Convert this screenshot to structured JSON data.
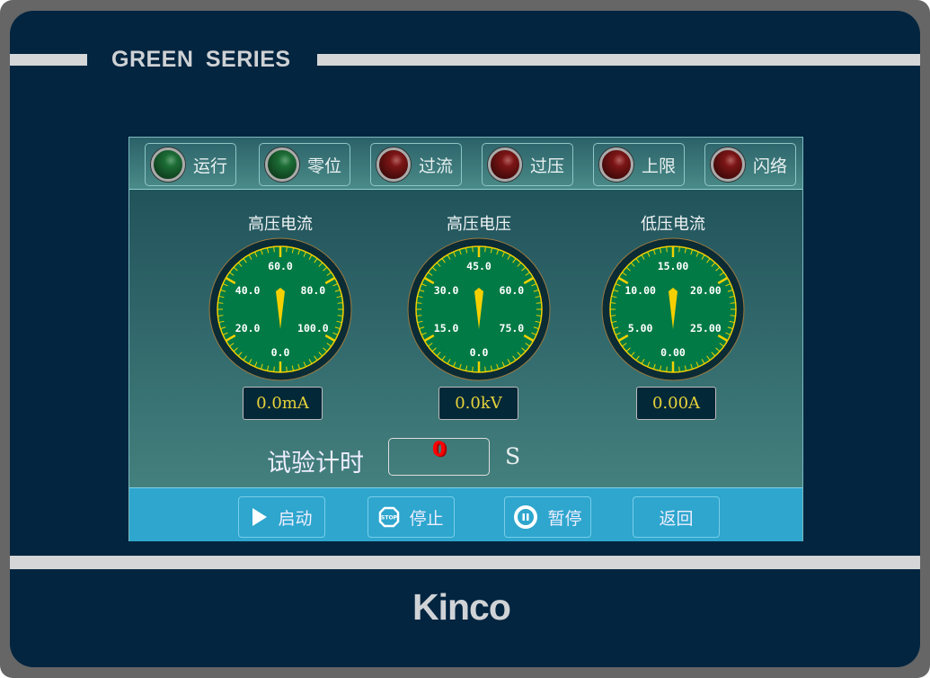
{
  "brand": {
    "series": "GREEN SERIES",
    "logo": "Kinco"
  },
  "lamps": [
    {
      "label": "运行",
      "state": "green"
    },
    {
      "label": "零位",
      "state": "green"
    },
    {
      "label": "过流",
      "state": "red"
    },
    {
      "label": "过压",
      "state": "red"
    },
    {
      "label": "上限",
      "state": "red"
    },
    {
      "label": "闪络",
      "state": "red"
    }
  ],
  "gauges": [
    {
      "title": "高压电流",
      "labels": [
        "0.0",
        "20.0",
        "40.0",
        "60.0",
        "80.0",
        "100.0"
      ],
      "value": 0,
      "max": 120,
      "readout": "0.0mA"
    },
    {
      "title": "高压电压",
      "labels": [
        "0.0",
        "15.0",
        "30.0",
        "45.0",
        "60.0",
        "75.0"
      ],
      "value": 0,
      "max": 90,
      "readout": "0.0kV"
    },
    {
      "title": "低压电流",
      "labels": [
        "0.00",
        "5.00",
        "10.00",
        "15.00",
        "20.00",
        "25.00"
      ],
      "value": 0,
      "max": 30,
      "readout": "0.00A"
    }
  ],
  "timer": {
    "label": "试验计时",
    "value": "0",
    "unit": "S"
  },
  "buttons": [
    {
      "label": "启动",
      "icon": "play-icon"
    },
    {
      "label": "停止",
      "icon": "stop-sign-icon",
      "icon_text": "STOP"
    },
    {
      "label": "暂停",
      "icon": "pause-icon"
    },
    {
      "label": "返回",
      "icon": ""
    }
  ],
  "colors": {
    "gauge_face": "#017a45",
    "gauge_tick": "#f0d000",
    "lamp_green": "#1c6c35",
    "lamp_red": "#7b1515",
    "button_bar": "#2ea6ce"
  }
}
